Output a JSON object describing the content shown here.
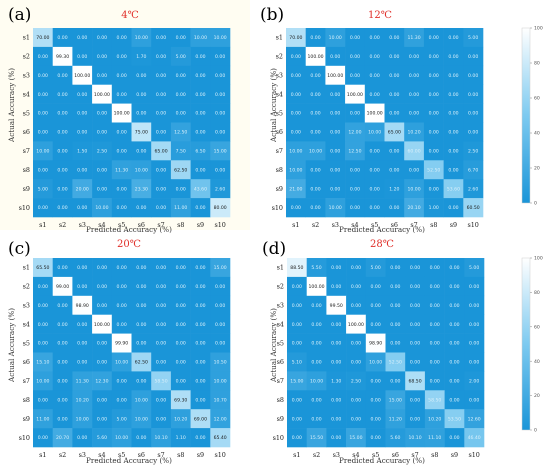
{
  "chart_data": [
    {
      "type": "heatmap",
      "panel_label": "(a)",
      "title": "4℃",
      "xlabel": "Predicted Accuracy (%)",
      "ylabel": "Actual Accuracy (%)",
      "categories": [
        "s1",
        "s2",
        "s3",
        "s4",
        "s5",
        "s6",
        "s7",
        "s8",
        "s9",
        "s10"
      ],
      "values": [
        [
          70.0,
          0.0,
          0.0,
          0.0,
          0.0,
          10.0,
          0.0,
          0.0,
          10.0,
          10.0
        ],
        [
          0.0,
          99.3,
          0.0,
          0.0,
          0.0,
          1.7,
          0.0,
          5.0,
          0.0,
          0.0
        ],
        [
          0.0,
          0.0,
          100.0,
          0.0,
          0.0,
          0.0,
          0.0,
          0.0,
          0.0,
          0.0
        ],
        [
          0.0,
          0.0,
          0.0,
          100.0,
          0.0,
          0.0,
          0.0,
          0.0,
          0.0,
          0.0
        ],
        [
          0.0,
          0.0,
          0.0,
          0.0,
          100.0,
          0.0,
          0.0,
          0.0,
          0.0,
          0.0
        ],
        [
          0.0,
          0.0,
          0.0,
          0.0,
          0.0,
          75.0,
          0.0,
          12.5,
          0.0,
          0.0
        ],
        [
          10.0,
          0.0,
          1.5,
          2.5,
          0.0,
          0.0,
          65.0,
          7.5,
          6.5,
          15.0
        ],
        [
          0.0,
          0.0,
          0.0,
          0.0,
          11.3,
          10.0,
          0.0,
          62.5,
          0.0,
          0.0
        ],
        [
          5.0,
          0.0,
          20.0,
          0.0,
          0.0,
          23.3,
          0.0,
          0.0,
          43.6,
          2.6
        ],
        [
          0.0,
          0.0,
          0.0,
          10.0,
          0.0,
          0.0,
          0.0,
          11.0,
          0.0,
          80.0
        ]
      ],
      "colorbar_range": [
        0,
        100
      ],
      "colorbar_ticks": [
        "100",
        "80",
        "60",
        "40",
        "20",
        "0"
      ]
    },
    {
      "type": "heatmap",
      "panel_label": "(b)",
      "title": "12℃",
      "xlabel": "Predicted Accuracy (%)",
      "ylabel": "Actual Accuracy (%)",
      "categories": [
        "s1",
        "s2",
        "s3",
        "s4",
        "s5",
        "s6",
        "s7",
        "s8",
        "s9",
        "s10"
      ],
      "values": [
        [
          70.0,
          0.0,
          10.0,
          0.0,
          0.0,
          0.0,
          11.3,
          0.0,
          0.0,
          5.0
        ],
        [
          0.0,
          100.0,
          0.0,
          0.0,
          0.0,
          0.0,
          0.0,
          0.0,
          0.0,
          0.0
        ],
        [
          0.0,
          0.0,
          100.0,
          0.0,
          0.0,
          0.0,
          0.0,
          0.0,
          0.0,
          0.0
        ],
        [
          0.0,
          0.0,
          0.0,
          100.0,
          0.0,
          0.0,
          0.0,
          0.0,
          0.0,
          0.0
        ],
        [
          0.0,
          0.0,
          0.0,
          0.0,
          100.0,
          0.0,
          0.0,
          0.0,
          0.0,
          0.0
        ],
        [
          0.0,
          0.0,
          0.0,
          12.0,
          10.0,
          65.0,
          10.2,
          0.0,
          0.0,
          0.0
        ],
        [
          10.0,
          10.0,
          0.0,
          12.5,
          0.0,
          0.0,
          60.0,
          0.0,
          0.0,
          2.5
        ],
        [
          10.0,
          0.0,
          0.0,
          0.0,
          0.0,
          0.0,
          0.0,
          52.5,
          0.0,
          6.7
        ],
        [
          21.0,
          0.0,
          0.0,
          0.0,
          0.0,
          1.2,
          10.0,
          0.0,
          53.6,
          2.6
        ],
        [
          0.0,
          0.0,
          10.0,
          0.0,
          0.0,
          0.0,
          20.1,
          1.0,
          0.0,
          60.5
        ]
      ],
      "colorbar_range": [
        0,
        100
      ],
      "colorbar_ticks": [
        "100",
        "80",
        "60",
        "40",
        "20",
        "0"
      ]
    },
    {
      "type": "heatmap",
      "panel_label": "(c)",
      "title": "20℃",
      "xlabel": "Predicted Accuracy (%)",
      "ylabel": "Actual Accuracy (%)",
      "categories": [
        "s1",
        "s2",
        "s3",
        "s4",
        "s5",
        "s6",
        "s7",
        "s8",
        "s9",
        "s10"
      ],
      "values": [
        [
          65.5,
          0.0,
          0.0,
          0.0,
          0.0,
          0.0,
          0.0,
          0.0,
          0.0,
          15.0
        ],
        [
          0.0,
          99.0,
          0.0,
          0.0,
          0.0,
          0.0,
          0.0,
          0.0,
          0.0,
          0.0
        ],
        [
          0.0,
          0.0,
          98.9,
          0.0,
          0.0,
          0.0,
          0.0,
          0.0,
          0.0,
          0.0
        ],
        [
          0.0,
          0.0,
          0.0,
          100.0,
          0.0,
          0.0,
          0.0,
          0.0,
          0.0,
          0.0
        ],
        [
          0.0,
          0.0,
          0.0,
          0.0,
          99.9,
          0.0,
          0.0,
          0.0,
          0.0,
          0.0
        ],
        [
          15.1,
          0.0,
          0.0,
          0.0,
          10.0,
          62.5,
          0.0,
          0.0,
          0.0,
          10.5
        ],
        [
          10.0,
          0.0,
          11.3,
          12.3,
          0.0,
          0.0,
          58.5,
          0.0,
          0.0,
          10.0
        ],
        [
          0.0,
          0.0,
          10.2,
          0.0,
          0.0,
          10.0,
          0.0,
          69.3,
          0.0,
          10.7
        ],
        [
          11.0,
          0.0,
          10.0,
          0.0,
          5.0,
          10.0,
          0.0,
          10.2,
          69.0,
          12.0
        ],
        [
          0.0,
          20.7,
          0.0,
          5.6,
          10.0,
          0.0,
          10.1,
          1.1,
          0.0,
          65.4
        ]
      ],
      "colorbar_range": [
        0,
        100
      ],
      "colorbar_ticks": [
        "100",
        "80",
        "60",
        "40",
        "20",
        "0"
      ]
    },
    {
      "type": "heatmap",
      "panel_label": "(d)",
      "title": "28℃",
      "xlabel": "Predicted Accuracy (%)",
      "ylabel": "Actual Accuracy (%)",
      "categories": [
        "s1",
        "s2",
        "s3",
        "s4",
        "s5",
        "s6",
        "s7",
        "s8",
        "s9",
        "s10"
      ],
      "values": [
        [
          88.5,
          5.5,
          0.0,
          0.0,
          5.0,
          0.0,
          0.0,
          0.0,
          0.0,
          5.0
        ],
        [
          0.0,
          100.0,
          0.0,
          0.0,
          0.0,
          0.0,
          0.0,
          0.0,
          0.0,
          0.0
        ],
        [
          0.0,
          0.0,
          99.5,
          0.0,
          0.0,
          0.0,
          0.0,
          0.0,
          0.0,
          0.0
        ],
        [
          0.0,
          0.0,
          0.0,
          100.0,
          0.0,
          0.0,
          0.0,
          0.0,
          0.0,
          0.0
        ],
        [
          0.0,
          0.0,
          0.0,
          0.0,
          98.9,
          0.0,
          0.0,
          0.0,
          0.0,
          0.0
        ],
        [
          5.1,
          0.0,
          0.0,
          0.0,
          10.0,
          52.5,
          0.0,
          0.0,
          0.0,
          0.0
        ],
        [
          15.0,
          10.0,
          1.3,
          2.5,
          0.0,
          0.0,
          68.5,
          0.0,
          0.0,
          2.0
        ],
        [
          0.0,
          0.0,
          0.0,
          0.0,
          0.0,
          15.0,
          0.0,
          58.5,
          0.0,
          0.0
        ],
        [
          0.0,
          0.0,
          0.0,
          0.0,
          0.0,
          11.2,
          0.0,
          10.2,
          53.5,
          12.6
        ],
        [
          0.0,
          15.5,
          0.0,
          15.0,
          0.0,
          5.6,
          10.1,
          11.1,
          0.0,
          46.4
        ]
      ],
      "colorbar_range": [
        0,
        100
      ],
      "colorbar_ticks": [
        "100",
        "80",
        "60",
        "40",
        "20",
        "0"
      ]
    }
  ],
  "colors": {
    "low": "#1a95d8",
    "mid": "#7dcaf0",
    "high": "#ffffff",
    "title": "#e0302a"
  }
}
